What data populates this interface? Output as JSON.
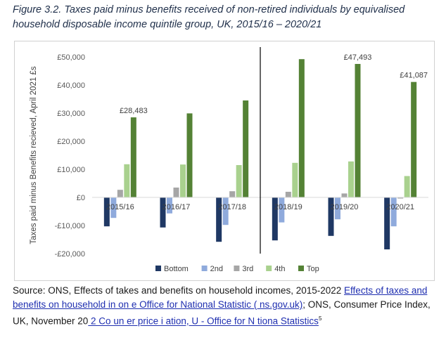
{
  "figure_title": "Figure 3.2. Taxes paid minus benefits received of non-retired individuals by equivalised household disposable income quintile group, UK, 2015/16 – 2020/21",
  "source": {
    "prefix": "Source: ONS, Effects of takes and benefits on household incomes, 2015-2022 ",
    "link1": "Effects of taxes and benefits on household in  on e   Office for National Statistic  ( ns.gov.uk)",
    "middle": "; ONS, Consumer Price Index, UK, November 20",
    "link2": "  2 Co  un  er price i  ation, U  - Office for N  tiona  Statistics",
    "footnote": "5"
  },
  "chart_data": {
    "type": "bar",
    "title": "",
    "xlabel": "",
    "ylabel": "Taxes paid minus Benefits recieved, April 2021 £s",
    "ylim": [
      -20000,
      50000
    ],
    "yticks": [
      50000,
      40000,
      30000,
      20000,
      10000,
      0,
      -10000,
      -20000
    ],
    "ytick_labels": [
      "£50,000",
      "£40,000",
      "£30,000",
      "£20,000",
      "£10,000",
      "£0",
      "-£10,000",
      "-£20,000"
    ],
    "categories": [
      "2015/16",
      "2016/17",
      "2017/18",
      "2018/19",
      "2019/20",
      "2020/21"
    ],
    "series": [
      {
        "name": "Bottom",
        "color": "#1f3864",
        "values": [
          -10300,
          -10700,
          -15800,
          -15300,
          -13700,
          -18500
        ]
      },
      {
        "name": "2nd",
        "color": "#8faadc",
        "values": [
          -7300,
          -5700,
          -9800,
          -8900,
          -7800,
          -10300
        ]
      },
      {
        "name": "3rd",
        "color": "#a6a6a6",
        "values": [
          2700,
          3500,
          2200,
          2000,
          1400,
          -400
        ]
      },
      {
        "name": "4th",
        "color": "#a9d18e",
        "values": [
          11800,
          11700,
          11500,
          12300,
          12800,
          7600
        ]
      },
      {
        "name": "Top",
        "color": "#548235",
        "values": [
          28483,
          29900,
          34500,
          49200,
          47493,
          41087
        ]
      }
    ],
    "annotations": [
      "£28,483",
      "£47,493",
      "£41,087"
    ],
    "legend_position": "bottom",
    "divider_between": [
      "2017/18",
      "2018/19"
    ],
    "grid": false
  }
}
